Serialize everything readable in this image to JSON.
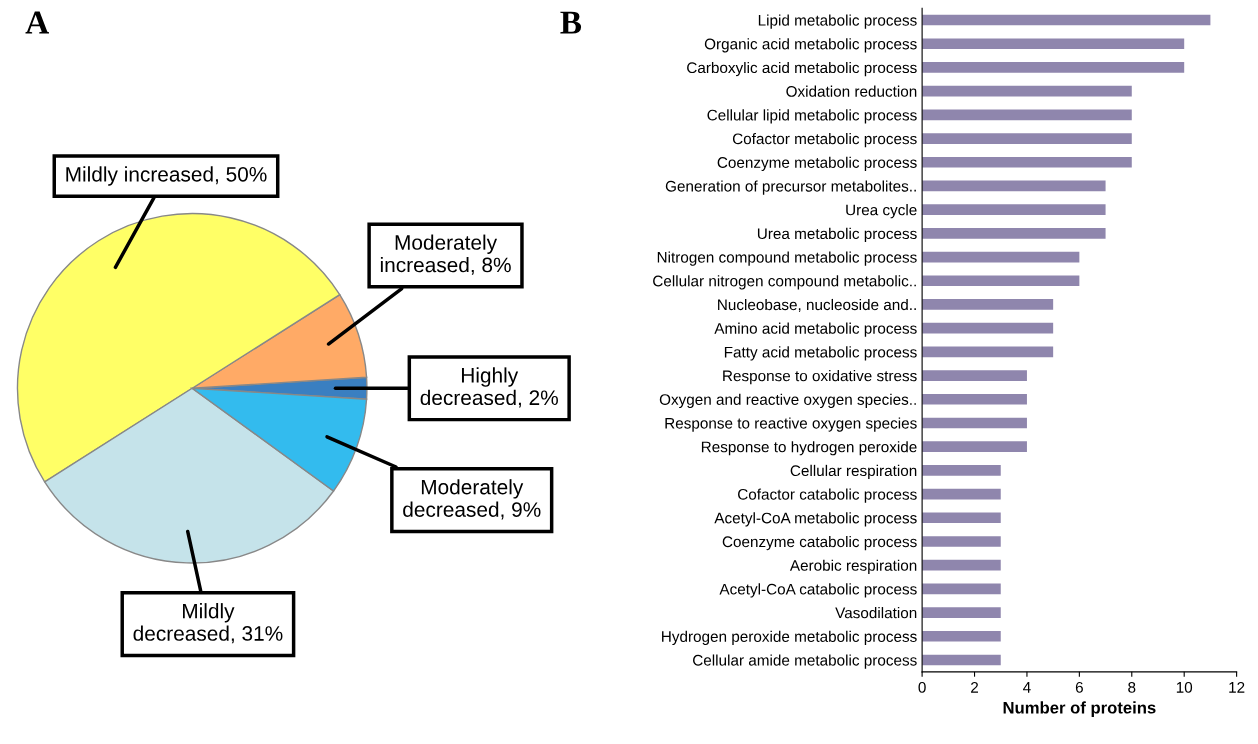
{
  "chart_data": [
    {
      "type": "pie",
      "title": "A",
      "categories": [
        "Highly\ndecreased, 2%",
        "Moderately\nincreased, 8%",
        "Mildly increased, 50%",
        "Mildly\ndecreased, 31%",
        "Moderately\ndecreased, 9%"
      ],
      "values": [
        2,
        8,
        50,
        31,
        9
      ],
      "colors": [
        "#3a7fc1",
        "#ffaa66",
        "#ffff66",
        "#c5e3ea",
        "#33bbee"
      ]
    },
    {
      "type": "bar",
      "title": "B",
      "orientation": "horizontal",
      "xlabel": "Number of proteins",
      "color": "#8f86ad",
      "grid": false,
      "legend": false,
      "categories": [
        "Lipid metabolic process",
        "Organic acid metabolic process",
        "Carboxylic acid metabolic process",
        "Oxidation reduction",
        "Cellular lipid metabolic process",
        "Cofactor metabolic process",
        "Coenzyme metabolic process",
        "Generation of precursor metabolites..",
        "Urea cycle",
        "Urea metabolic process",
        "Nitrogen compound metabolic process",
        "Cellular nitrogen compound metabolic..",
        "Nucleobase, nucleoside and..",
        "Amino acid metabolic process",
        "Fatty acid metabolic process",
        "Response to oxidative stress",
        "Oxygen and reactive oxygen species..",
        "Response to reactive oxygen species",
        "Response to hydrogen peroxide",
        "Cellular respiration",
        "Cofactor catabolic process",
        "Acetyl-CoA metabolic process",
        "Coenzyme catabolic process",
        "Aerobic respiration",
        "Acetyl-CoA catabolic process",
        "Vasodilation",
        "Hydrogen peroxide metabolic process",
        "Cellular amide metabolic process"
      ],
      "values": [
        11,
        10,
        10,
        8,
        8,
        8,
        8,
        7,
        7,
        7,
        6,
        6,
        5,
        5,
        5,
        4,
        4,
        4,
        4,
        3,
        3,
        3,
        3,
        3,
        3,
        3,
        3,
        3
      ],
      "xlim": [
        0,
        12
      ],
      "xticks": [
        0,
        2,
        4,
        6,
        8,
        10,
        12
      ]
    }
  ]
}
